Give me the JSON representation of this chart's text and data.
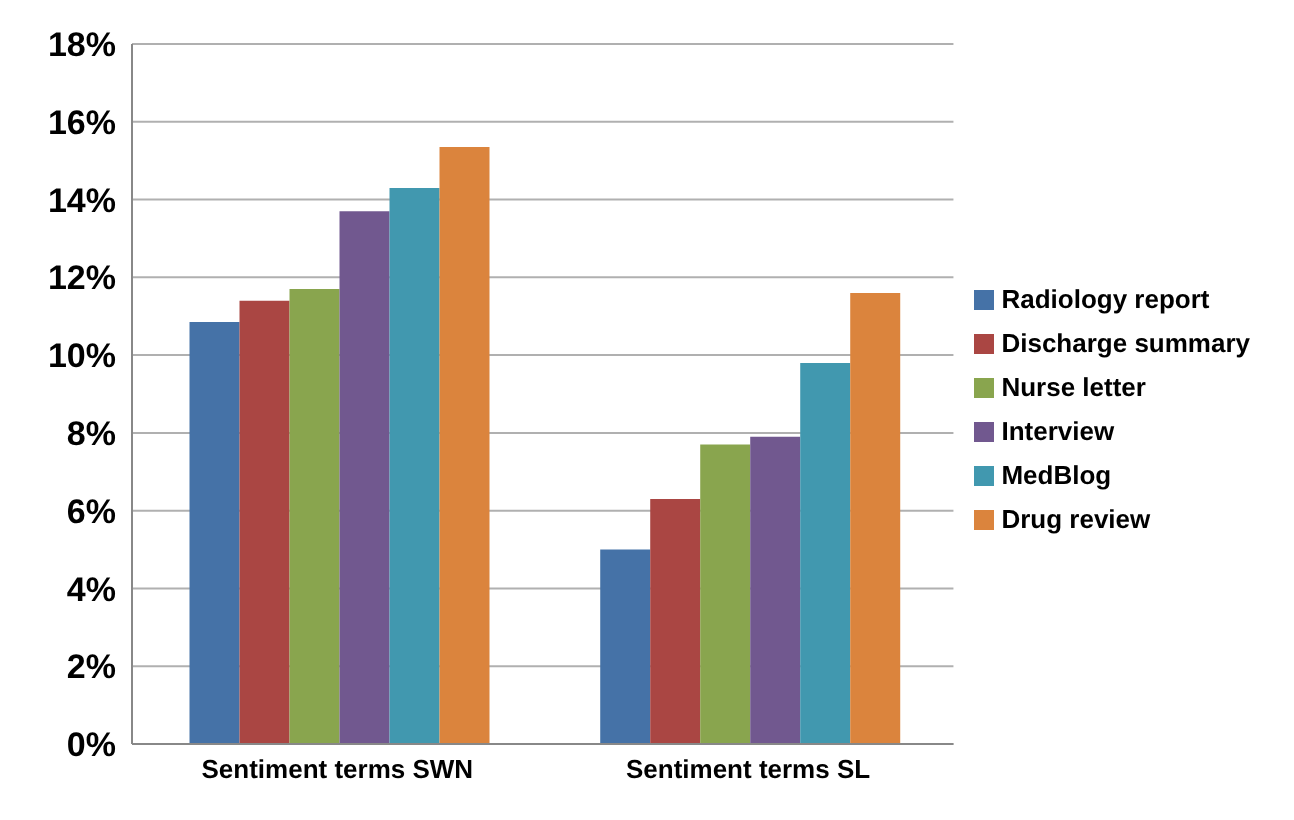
{
  "chart_data": {
    "type": "bar",
    "categories": [
      "Sentiment terms SWN",
      "Sentiment terms SL"
    ],
    "series": [
      {
        "name": "Radiology report",
        "color": "#4572a7",
        "values": [
          10.85,
          5.0
        ]
      },
      {
        "name": "Discharge summary",
        "color": "#aa4643",
        "values": [
          11.4,
          6.3
        ]
      },
      {
        "name": "Nurse letter",
        "color": "#89a54e",
        "values": [
          11.7,
          7.7
        ]
      },
      {
        "name": "Interview",
        "color": "#71588f",
        "values": [
          13.7,
          7.9
        ]
      },
      {
        "name": "MedBlog",
        "color": "#4198af",
        "values": [
          14.3,
          9.8
        ]
      },
      {
        "name": "Drug review",
        "color": "#db843d",
        "values": [
          15.35,
          11.6
        ]
      }
    ],
    "ylim": [
      0,
      18
    ],
    "yticks": [
      {
        "value": 0,
        "label": "0%"
      },
      {
        "value": 2,
        "label": "2%"
      },
      {
        "value": 4,
        "label": "4%"
      },
      {
        "value": 6,
        "label": "6%"
      },
      {
        "value": 8,
        "label": "8%"
      },
      {
        "value": 10,
        "label": "10%"
      },
      {
        "value": 12,
        "label": "12%"
      },
      {
        "value": 14,
        "label": "14%"
      },
      {
        "value": 16,
        "label": "16%"
      },
      {
        "value": 18,
        "label": "18%"
      }
    ],
    "grid": "y",
    "legend": "right"
  }
}
